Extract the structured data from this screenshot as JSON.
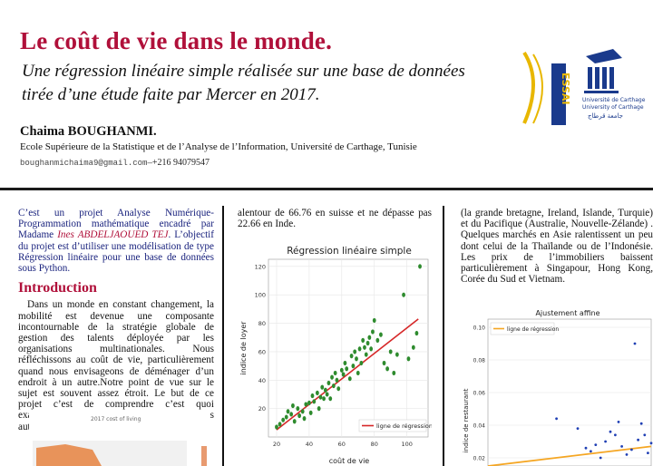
{
  "header": {
    "title": "Le coût de vie dans le monde.",
    "subtitle_line1": "Une régression linéaire simple réalisée sur une base de données",
    "subtitle_line2": "tirée d’une étude faite par Mercer en 2017.",
    "author": "Chaima BOUGHANMI.",
    "affiliation": "Ecole Supérieure de la Statistique et de l’Analyse de l’Information, Université de Carthage, Tunisie",
    "email": "boughanmichaima9@gmail.com",
    "separator": "—",
    "phone": "+216 94079547",
    "logo_left_text": "ESSAI",
    "logo_right_line1": "Université de Carthage",
    "logo_right_line2": "University of Carthage",
    "logo_right_line3": "جامعة قرطاج"
  },
  "col1": {
    "intro_a": "C’est un projet Analyse Numérique-Programmation mathématique encadré par Madame ",
    "intro_name": "Ines ABDELJAOUED TEJ",
    "intro_b": ". L’objectif du projet est d’utiliser une modélisation de type Régression linéaire pour une base de données sous Python.",
    "section_title": "Introduction",
    "intro_paragraph": "Dans un monde en constant changement, la mobilité est devenue une composante incontournable de la stratégie globale de gestion des talents déployée par les organisations multinationales. Nous réfléchissons au coût de vie, particulièrement quand nous envisageons de déménager d’un endroit à un autre.Notre point de vue sur le sujet est souvent assez étroit. Le but de ce projet c’est de comprendre c’est quoi exactement le coût de vie et sa relation avec les autres indices.",
    "small_chart_title": "2017 cost of living"
  },
  "col2": {
    "text": "alentour de 66.76 en suisse et ne dépasse pas 22.66 en Inde."
  },
  "col3": {
    "text": "(la grande bretagne, Ireland, Islande, Turquie) et du Pacifique (Australie, Nouvelle-Zélande) . Quelques marchés en Asie ralentissent un peu dont celui de la Thaïlande ou de l’Indonésie. Les prix de l’immobiliers baissent particulièrement à Singapour, Hong Kong, Corée du Sud et Vietnam."
  },
  "chart_data": [
    {
      "type": "scatter",
      "title": "Régression linéaire simple",
      "xlabel": "coût de vie",
      "ylabel": "indice de loyer",
      "xlim": [
        15,
        113
      ],
      "ylim": [
        0,
        125
      ],
      "xticks": [
        "20",
        "40",
        "60",
        "80",
        "100"
      ],
      "yticks": [
        "20",
        "40",
        "60",
        "80",
        "100",
        "120"
      ],
      "legend": "ligne de régression",
      "legend_position": "bottom-right",
      "grid": true,
      "colors": {
        "points": "#2e8b2e",
        "line": "#d62728"
      },
      "regression": [
        [
          20,
          5
        ],
        [
          107,
          83
        ]
      ],
      "points": [
        [
          20,
          7
        ],
        [
          22,
          9
        ],
        [
          24,
          12
        ],
        [
          26,
          14
        ],
        [
          27,
          18
        ],
        [
          29,
          16
        ],
        [
          30,
          22
        ],
        [
          31,
          11
        ],
        [
          33,
          20
        ],
        [
          34,
          15
        ],
        [
          36,
          18
        ],
        [
          37,
          13
        ],
        [
          38,
          23
        ],
        [
          40,
          24
        ],
        [
          41,
          17
        ],
        [
          42,
          29
        ],
        [
          43,
          25
        ],
        [
          45,
          31
        ],
        [
          46,
          20
        ],
        [
          47,
          28
        ],
        [
          48,
          35
        ],
        [
          49,
          27
        ],
        [
          50,
          33
        ],
        [
          51,
          30
        ],
        [
          52,
          38
        ],
        [
          53,
          27
        ],
        [
          54,
          42
        ],
        [
          55,
          36
        ],
        [
          56,
          45
        ],
        [
          57,
          40
        ],
        [
          58,
          34
        ],
        [
          60,
          47
        ],
        [
          61,
          44
        ],
        [
          62,
          52
        ],
        [
          63,
          48
        ],
        [
          65,
          41
        ],
        [
          66,
          57
        ],
        [
          67,
          50
        ],
        [
          68,
          60
        ],
        [
          69,
          55
        ],
        [
          70,
          45
        ],
        [
          71,
          62
        ],
        [
          72,
          52
        ],
        [
          73,
          68
        ],
        [
          74,
          63
        ],
        [
          75,
          58
        ],
        [
          76,
          66
        ],
        [
          77,
          70
        ],
        [
          78,
          62
        ],
        [
          79,
          74
        ],
        [
          80,
          82
        ],
        [
          82,
          68
        ],
        [
          84,
          72
        ],
        [
          86,
          52
        ],
        [
          88,
          48
        ],
        [
          90,
          60
        ],
        [
          92,
          45
        ],
        [
          94,
          58
        ],
        [
          98,
          100
        ],
        [
          101,
          55
        ],
        [
          104,
          63
        ],
        [
          106,
          73
        ],
        [
          108,
          120
        ]
      ]
    },
    {
      "type": "scatter",
      "title": "Ajustement affine",
      "ylabel": "indice de restaurant",
      "ylim": [
        0.015,
        0.105
      ],
      "yticks": [
        "0.10",
        "0.08",
        "0.06",
        "0.04",
        "0.02"
      ],
      "legend": "ligne de régression",
      "legend_position": "top-left",
      "grid": true,
      "colors": {
        "points": "#1f3fb4",
        "line": "#f5a623"
      },
      "regression": [
        [
          0.0,
          0.015
        ],
        [
          1.0,
          0.027
        ]
      ],
      "points": [
        [
          0.42,
          0.044
        ],
        [
          0.55,
          0.038
        ],
        [
          0.6,
          0.026
        ],
        [
          0.63,
          0.024
        ],
        [
          0.66,
          0.028
        ],
        [
          0.69,
          0.02
        ],
        [
          0.72,
          0.03
        ],
        [
          0.75,
          0.036
        ],
        [
          0.78,
          0.034
        ],
        [
          0.8,
          0.042
        ],
        [
          0.82,
          0.027
        ],
        [
          0.85,
          0.022
        ],
        [
          0.88,
          0.025
        ],
        [
          0.9,
          0.09
        ],
        [
          0.92,
          0.031
        ],
        [
          0.94,
          0.041
        ],
        [
          0.96,
          0.034
        ],
        [
          0.98,
          0.023
        ],
        [
          1.0,
          0.029
        ]
      ]
    }
  ]
}
